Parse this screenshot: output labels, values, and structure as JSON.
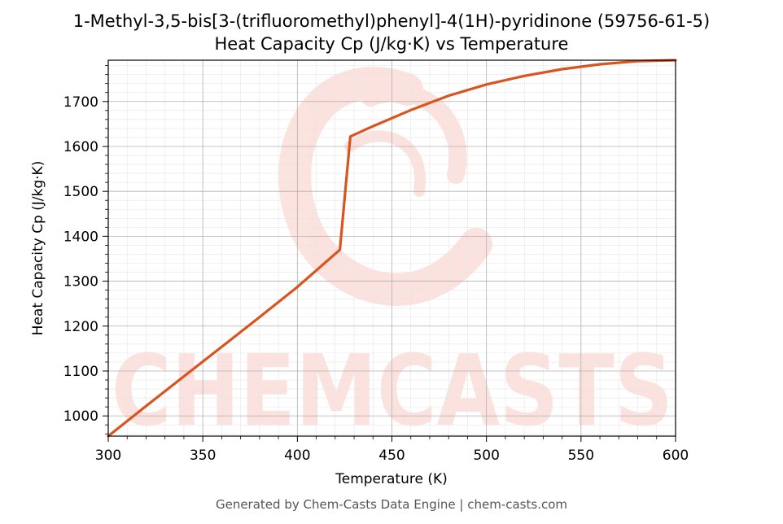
{
  "chart_data": {
    "type": "line",
    "title": "1-Methyl-3,5-bis[3-(trifluoromethyl)phenyl]-4(1H)-pyridinone (59756-61-5)",
    "subtitle": "Heat Capacity Cp (J/kg·K) vs Temperature",
    "xlabel": "Temperature (K)",
    "ylabel": "Heat Capacity Cp (J/kg·K)",
    "xlim": [
      300,
      600
    ],
    "ylim": [
      955,
      1792
    ],
    "x_ticks": [
      300,
      350,
      400,
      450,
      500,
      550,
      600
    ],
    "y_ticks": [
      1000,
      1100,
      1200,
      1300,
      1400,
      1500,
      1600,
      1700
    ],
    "grid": true,
    "series": [
      {
        "color": "#d9541e",
        "x": [
          300,
          320,
          340,
          360,
          380,
          400,
          422.5,
          428,
          440,
          460,
          480,
          500,
          520,
          540,
          560,
          580,
          600
        ],
        "y": [
          955,
          1022,
          1088,
          1154,
          1220,
          1287,
          1370,
          1622,
          1645,
          1681,
          1713,
          1738,
          1757,
          1772,
          1783,
          1790,
          1792
        ]
      }
    ]
  },
  "watermark": {
    "text": "CHEMCASTS",
    "color": "#fbd9d3"
  },
  "footer": "Generated by Chem-Casts Data Engine | chem-casts.com"
}
